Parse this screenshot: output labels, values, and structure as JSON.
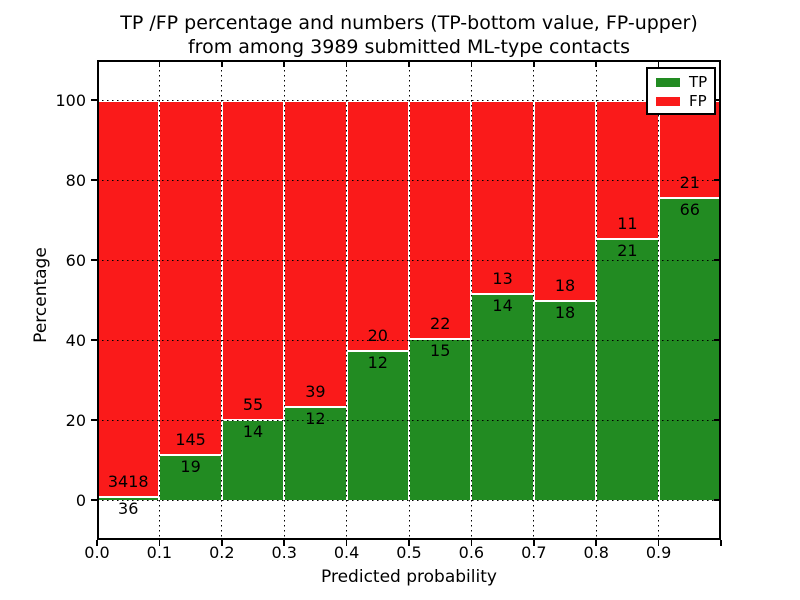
{
  "figure": {
    "title_line1": "TP /FP percentage and numbers (TP-bottom value, FP-upper)",
    "title_line2": "from among 3989 submitted ML-type contacts",
    "xlabel": "Predicted probability",
    "ylabel": "Percentage"
  },
  "legend": {
    "position": "upper right",
    "items": [
      {
        "label": "TP",
        "color": "#228b22"
      },
      {
        "label": "FP",
        "color": "#fa1a1a"
      }
    ]
  },
  "chart_data": {
    "type": "bar",
    "variant": "stacked-100-percent",
    "title": "TP /FP percentage and numbers (TP-bottom value, FP-upper) from among 3989 submitted ML-type contacts",
    "xlabel": "Predicted probability",
    "ylabel": "Percentage",
    "total_contacts": 3989,
    "bin_edges": [
      0.0,
      0.1,
      0.2,
      0.3,
      0.4,
      0.5,
      0.6,
      0.7,
      0.8,
      0.9,
      1.0
    ],
    "series": [
      {
        "name": "TP",
        "color": "#228b22",
        "counts": [
          36,
          19,
          14,
          12,
          12,
          15,
          14,
          18,
          21,
          66
        ]
      },
      {
        "name": "FP",
        "color": "#fa1a1a",
        "counts": [
          3418,
          145,
          55,
          39,
          20,
          22,
          13,
          18,
          11,
          21
        ]
      }
    ],
    "tp_percent": [
      1.04,
      11.59,
      20.29,
      23.53,
      37.5,
      40.54,
      51.85,
      50.0,
      65.63,
      75.86
    ],
    "xticks": [
      "0.0",
      "0.1",
      "0.2",
      "0.3",
      "0.4",
      "0.5",
      "0.6",
      "0.7",
      "0.8",
      "0.9"
    ],
    "yticks": [
      0,
      20,
      40,
      60,
      80,
      100
    ],
    "xlim": [
      0.0,
      1.0
    ],
    "ylim": [
      -10,
      110
    ],
    "grid": true,
    "grid_style": "dotted",
    "legend_position": "upper right",
    "bar_edge_color": "#ffffff"
  }
}
